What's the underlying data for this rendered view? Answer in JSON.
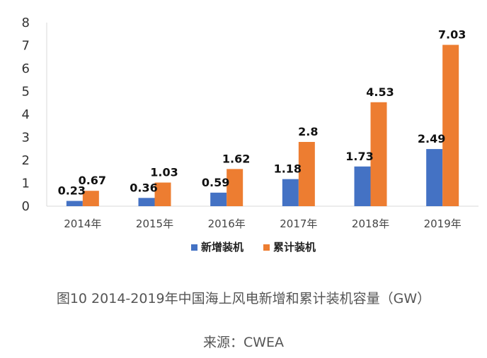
{
  "chart_data": {
    "type": "bar",
    "categories": [
      "2014年",
      "2015年",
      "2016年",
      "2017年",
      "2018年",
      "2019年"
    ],
    "series": [
      {
        "name": "新增装机",
        "color": "#4472C4",
        "values": [
          0.23,
          0.36,
          0.59,
          1.18,
          1.73,
          2.49
        ]
      },
      {
        "name": "累计装机",
        "color": "#ED7D31",
        "values": [
          0.67,
          1.03,
          1.62,
          2.8,
          4.53,
          7.03
        ]
      }
    ],
    "ylim": [
      0,
      8
    ],
    "yticks": [
      0,
      1,
      2,
      3,
      4,
      5,
      6,
      7,
      8
    ],
    "grid": false,
    "legend_position": "bottom-center"
  },
  "caption": "图10  2014-2019年中国海上风电新增和累计装机容量（GW）",
  "source": "来源：CWEA"
}
